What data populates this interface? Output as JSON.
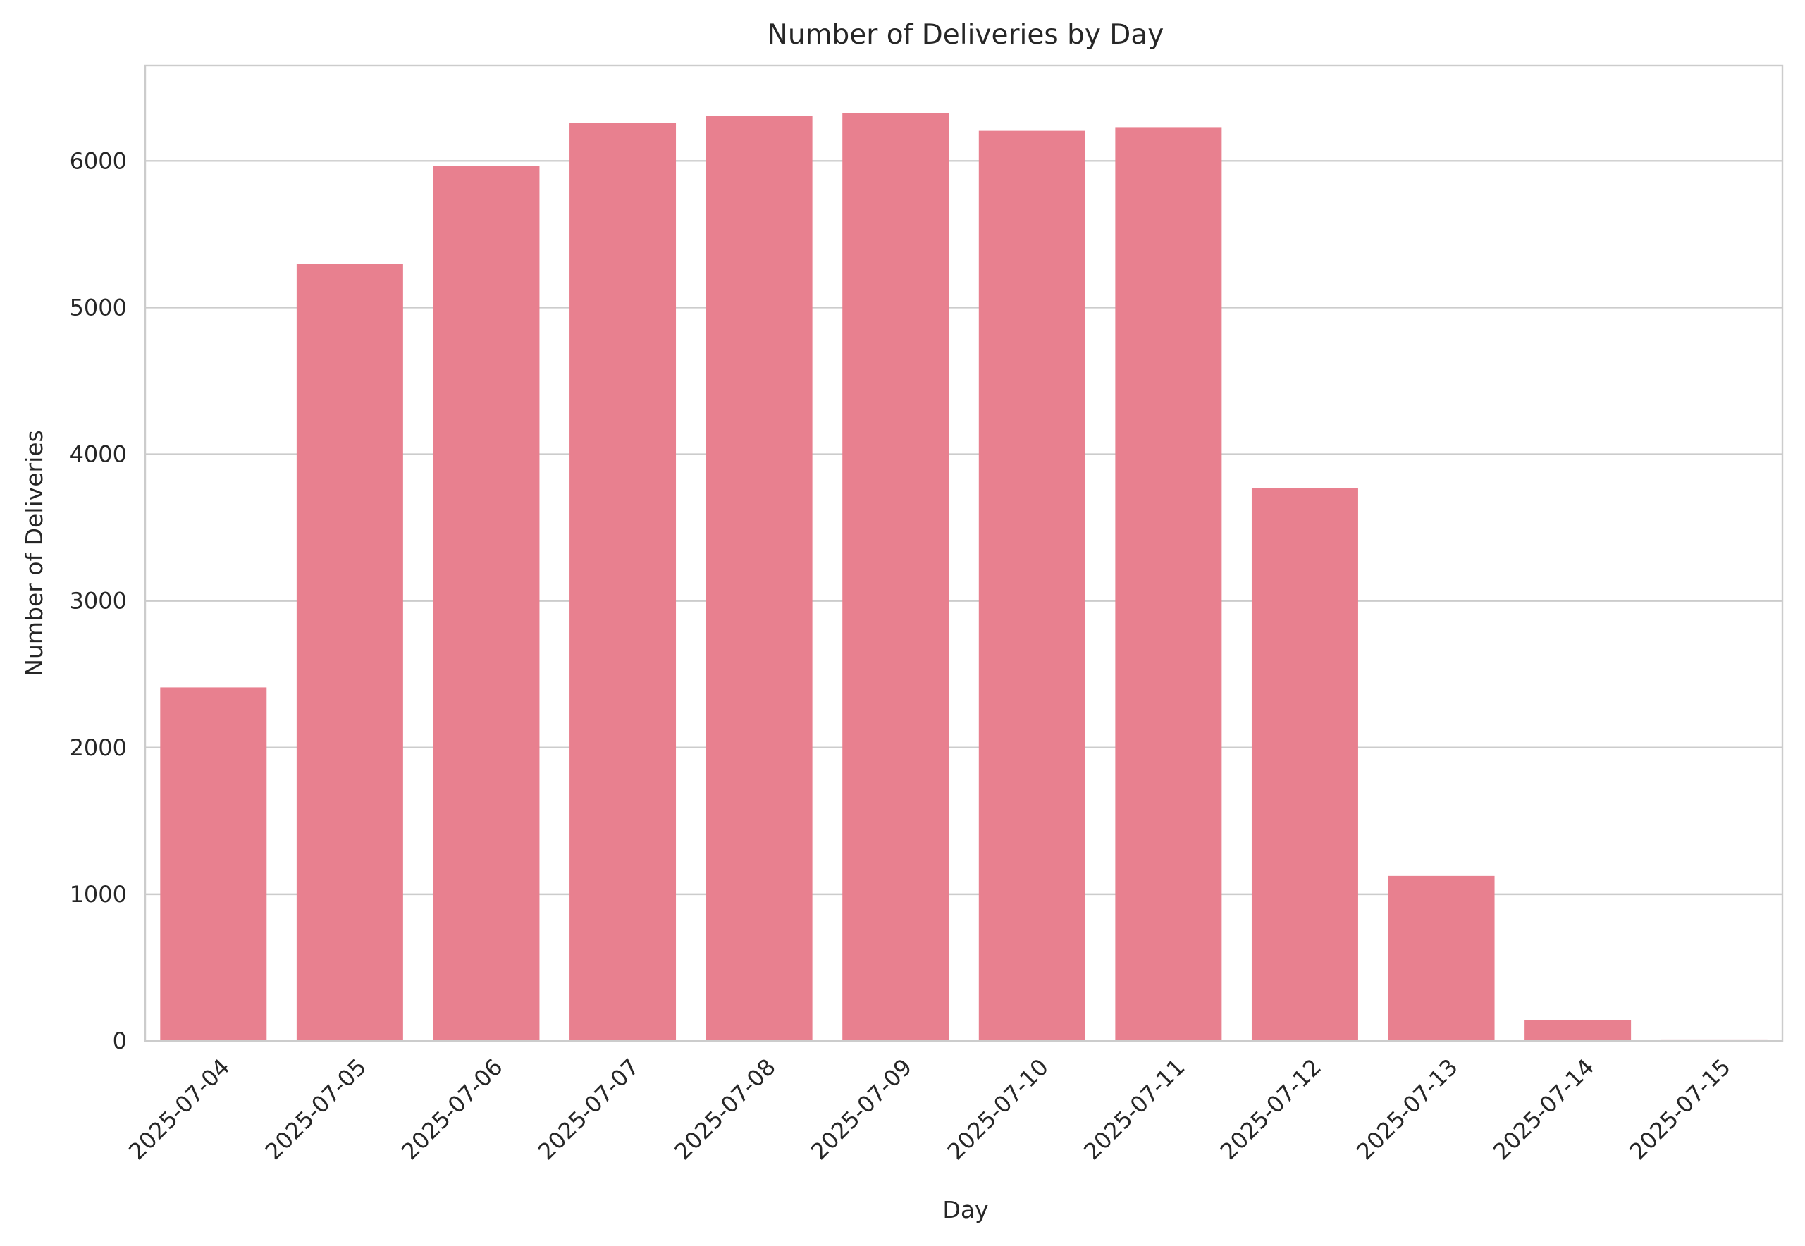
{
  "chart_data": {
    "type": "bar",
    "title": "Number of Deliveries by Day",
    "xlabel": "Day",
    "ylabel": "Number of Deliveries",
    "categories": [
      "2025-07-04",
      "2025-07-05",
      "2025-07-06",
      "2025-07-07",
      "2025-07-08",
      "2025-07-09",
      "2025-07-10",
      "2025-07-11",
      "2025-07-12",
      "2025-07-13",
      "2025-07-14",
      "2025-07-15"
    ],
    "values": [
      2410,
      5295,
      5965,
      6260,
      6305,
      6325,
      6205,
      6230,
      3770,
      1125,
      140,
      10
    ],
    "ylim": [
      0,
      6650
    ],
    "yticks": [
      0,
      1000,
      2000,
      3000,
      4000,
      5000,
      6000
    ],
    "grid": "y",
    "bar_color": "#e8808f",
    "x_tick_rotation": 45
  }
}
